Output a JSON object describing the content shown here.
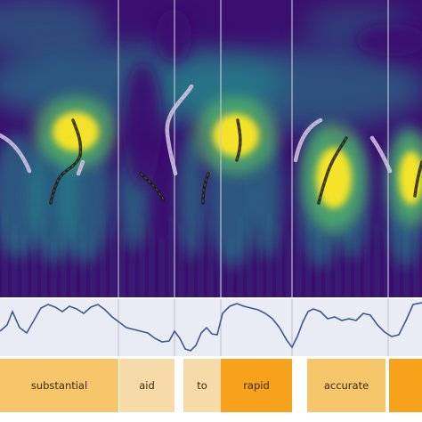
{
  "colors": {
    "spectrogram_background": "#3b0f6f",
    "spectrogram_mid": "#21908d",
    "spectrogram_hot": "#fde725",
    "divider": "#c9c9d6",
    "signal_panel_bg": "#e9ebf5",
    "signal_line": "#3c5a8a",
    "track_dark": "#1c1c1c",
    "track_light": "#d9c9e6",
    "word_light": "#f7c66a",
    "word_pale": "#f6dba8",
    "word_strong": "#f7a21b"
  },
  "words": [
    {
      "text": "substantial",
      "tone": "light"
    },
    {
      "text": "aid",
      "tone": "pale"
    },
    {
      "text": "to",
      "tone": "pale"
    },
    {
      "text": "rapid",
      "tone": "strong"
    },
    {
      "text": "accurate",
      "tone": "light"
    },
    {
      "text": "",
      "tone": "strong"
    }
  ]
}
